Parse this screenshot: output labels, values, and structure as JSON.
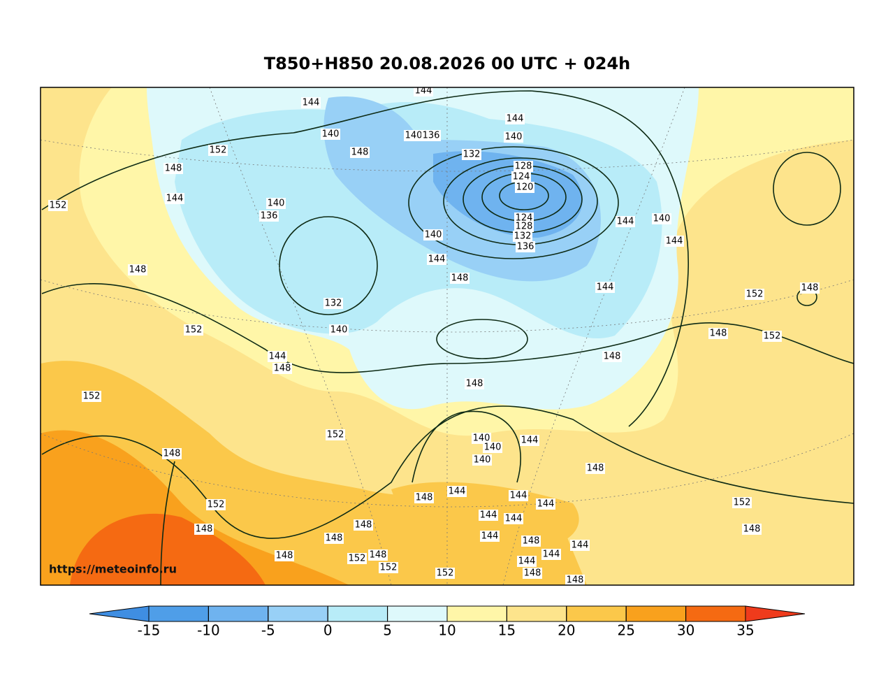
{
  "title": "T850+H850 20.08.2026 00 UTC + 024h",
  "watermark": "https://meteoinfo.ru",
  "contour_labels": [
    144,
    144,
    140,
    148,
    140,
    136,
    152,
    144,
    140,
    132,
    148,
    128,
    124,
    120,
    144,
    152,
    140,
    136,
    124,
    128,
    132,
    136,
    140,
    144,
    140,
    144,
    144,
    148,
    148,
    144,
    148,
    152,
    132,
    140,
    152,
    148,
    152,
    144,
    148,
    148,
    148,
    152,
    152,
    140,
    144,
    140,
    140,
    148,
    148,
    144,
    148,
    144,
    144,
    152,
    144,
    144,
    148,
    148,
    144,
    148,
    148,
    144,
    144,
    148,
    152,
    148,
    144,
    152,
    152,
    148,
    148,
    152,
    148
  ],
  "colorbar": {
    "ticks": [
      -15,
      -10,
      -5,
      0,
      5,
      10,
      15,
      20,
      25,
      30,
      35
    ],
    "colors": [
      "#4f9ee8",
      "#6fb3ef",
      "#98d0f6",
      "#b8ecf8",
      "#def9fb",
      "#fff6a8",
      "#fde48c",
      "#fbc84a",
      "#f9a11d",
      "#f56a12"
    ],
    "under_color": "#3f8ee2",
    "over_color": "#ef3b1c"
  }
}
